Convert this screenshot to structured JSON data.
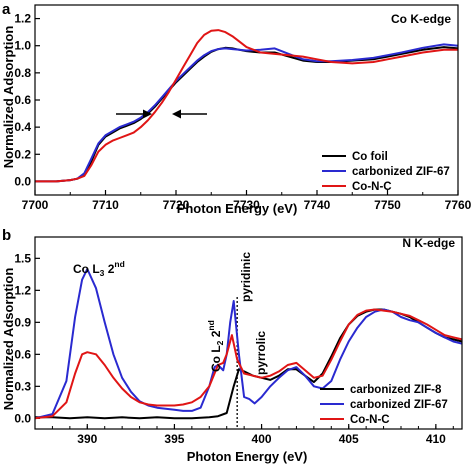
{
  "chart_data": [
    {
      "type": "line",
      "panel_label": "a",
      "panel_title": "Co K-edge",
      "xlabel": "Photon Energy (eV)",
      "ylabel": "Normalized Adsorption",
      "xlim": [
        7700,
        7760
      ],
      "ylim": [
        -0.1,
        1.3
      ],
      "xticks": [
        "7700",
        "7710",
        "7720",
        "7730",
        "7740",
        "7750",
        "7760"
      ],
      "yticks": [
        "0.0",
        "0.2",
        "0.4",
        "0.6",
        "0.8",
        "1.0",
        "1.2"
      ],
      "legend_position": "bottom-right",
      "series": [
        {
          "name": "Co foil",
          "color": "#000000",
          "x": [
            7700,
            7703,
            7705,
            7706,
            7707,
            7708,
            7709,
            7710,
            7711,
            7712,
            7713,
            7714,
            7715,
            7716,
            7717,
            7718,
            7719,
            7720,
            7721,
            7722,
            7723,
            7724,
            7725,
            7726,
            7727,
            7728,
            7729,
            7730,
            7732,
            7734,
            7736,
            7738,
            7740,
            7742,
            7745,
            7748,
            7750,
            7752,
            7755,
            7758,
            7760
          ],
          "y": [
            0.0,
            0.0,
            0.01,
            0.02,
            0.05,
            0.15,
            0.27,
            0.33,
            0.36,
            0.39,
            0.41,
            0.43,
            0.46,
            0.5,
            0.55,
            0.61,
            0.67,
            0.73,
            0.78,
            0.83,
            0.88,
            0.92,
            0.955,
            0.975,
            0.985,
            0.98,
            0.97,
            0.96,
            0.95,
            0.95,
            0.92,
            0.89,
            0.88,
            0.88,
            0.89,
            0.9,
            0.92,
            0.94,
            0.97,
            0.99,
            0.98
          ]
        },
        {
          "name": "carbonized ZIF-67",
          "color": "#2a2ad0",
          "x": [
            7700,
            7703,
            7705,
            7706,
            7707,
            7708,
            7709,
            7710,
            7711,
            7712,
            7713,
            7714,
            7715,
            7716,
            7717,
            7718,
            7719,
            7720,
            7721,
            7722,
            7723,
            7724,
            7725,
            7726,
            7727,
            7728,
            7729,
            7730,
            7732,
            7734,
            7736,
            7738,
            7740,
            7742,
            7745,
            7748,
            7750,
            7752,
            7755,
            7758,
            7760
          ],
          "y": [
            0.0,
            0.0,
            0.01,
            0.02,
            0.06,
            0.17,
            0.28,
            0.34,
            0.37,
            0.4,
            0.42,
            0.44,
            0.47,
            0.51,
            0.56,
            0.62,
            0.68,
            0.74,
            0.79,
            0.84,
            0.89,
            0.93,
            0.96,
            0.975,
            0.98,
            0.975,
            0.97,
            0.965,
            0.97,
            0.98,
            0.94,
            0.9,
            0.885,
            0.885,
            0.895,
            0.91,
            0.93,
            0.95,
            0.985,
            1.01,
            1.0
          ]
        },
        {
          "name": "Co-N-C",
          "color": "#e01515",
          "x": [
            7700,
            7703,
            7705,
            7706,
            7707,
            7708,
            7709,
            7710,
            7711,
            7712,
            7713,
            7714,
            7715,
            7716,
            7717,
            7718,
            7719,
            7720,
            7721,
            7722,
            7723,
            7724,
            7725,
            7726,
            7727,
            7728,
            7729,
            7730,
            7732,
            7734,
            7736,
            7738,
            7740,
            7742,
            7745,
            7748,
            7750,
            7752,
            7755,
            7758,
            7760
          ],
          "y": [
            0.0,
            0.0,
            0.01,
            0.02,
            0.04,
            0.12,
            0.22,
            0.27,
            0.3,
            0.32,
            0.34,
            0.36,
            0.4,
            0.45,
            0.51,
            0.58,
            0.66,
            0.75,
            0.84,
            0.93,
            1.02,
            1.08,
            1.11,
            1.115,
            1.1,
            1.07,
            1.03,
            0.99,
            0.95,
            0.94,
            0.93,
            0.92,
            0.9,
            0.88,
            0.87,
            0.88,
            0.9,
            0.92,
            0.95,
            0.97,
            0.97
          ]
        }
      ]
    },
    {
      "type": "line",
      "panel_label": "b",
      "panel_title": "N K-edge",
      "xlabel": "Photon Energy (eV)",
      "ylabel": "Normalized Adsorption",
      "xlim": [
        387,
        411.5
      ],
      "ylim": [
        -0.1,
        1.7
      ],
      "xticks": [
        "390",
        "395",
        "400",
        "405",
        "410"
      ],
      "yticks": [
        "0.0",
        "0.3",
        "0.6",
        "0.9",
        "1.2",
        "1.5"
      ],
      "legend_position": "bottom-right",
      "annotations": {
        "co_l3": {
          "base": "Co L",
          "sub": "3",
          "tail": " 2",
          "sup": "nd"
        },
        "co_l2": {
          "base": "Co L",
          "sub": "2",
          "tail": " 2",
          "sup": "nd"
        },
        "pyridinic": "pyridinic",
        "pyrrolic": "pyrrolic"
      },
      "vline_x": 398.6,
      "series": [
        {
          "name": "carbonized ZIF-8",
          "color": "#000000",
          "x": [
            387,
            388,
            389,
            390,
            391,
            392,
            393,
            394,
            395,
            396,
            397,
            397.5,
            398,
            398.4,
            398.7,
            399,
            399.5,
            400,
            400.5,
            401,
            401.5,
            402,
            402.5,
            403,
            403.5,
            404,
            404.5,
            405,
            405.5,
            406,
            406.5,
            407,
            407.5,
            408,
            408.5,
            409,
            409.5,
            410,
            410.5,
            411,
            411.5
          ],
          "y": [
            0.01,
            0.01,
            0.0,
            0.01,
            0.0,
            0.01,
            0.0,
            0.01,
            0.0,
            0.0,
            0.01,
            0.02,
            0.05,
            0.3,
            0.46,
            0.44,
            0.4,
            0.38,
            0.36,
            0.4,
            0.46,
            0.46,
            0.4,
            0.34,
            0.42,
            0.58,
            0.75,
            0.88,
            0.96,
            1.0,
            1.02,
            1.02,
            1.0,
            0.98,
            0.95,
            0.9,
            0.85,
            0.8,
            0.76,
            0.74,
            0.72
          ]
        },
        {
          "name": "carbonized ZIF-67",
          "color": "#2a2ad0",
          "x": [
            387,
            388,
            388.8,
            389.3,
            389.7,
            390,
            390.5,
            391,
            391.5,
            392,
            392.5,
            393,
            393.5,
            394,
            394.5,
            395,
            395.5,
            396,
            396.5,
            397,
            397.3,
            397.5,
            397.8,
            398,
            398.2,
            398.4,
            398.7,
            399,
            399.3,
            399.6,
            400,
            400.5,
            401,
            401.5,
            402,
            402.5,
            403,
            403.5,
            404,
            404.5,
            405,
            405.5,
            406,
            406.5,
            407,
            407.5,
            408,
            408.5,
            409,
            409.5,
            410,
            410.5,
            411,
            411.5
          ],
          "y": [
            0.0,
            0.04,
            0.35,
            0.95,
            1.3,
            1.4,
            1.22,
            0.9,
            0.6,
            0.38,
            0.25,
            0.16,
            0.12,
            0.1,
            0.09,
            0.08,
            0.07,
            0.07,
            0.1,
            0.3,
            0.48,
            0.5,
            0.45,
            0.6,
            0.9,
            1.1,
            0.6,
            0.2,
            0.18,
            0.14,
            0.2,
            0.3,
            0.38,
            0.45,
            0.48,
            0.4,
            0.3,
            0.28,
            0.35,
            0.55,
            0.72,
            0.85,
            0.95,
            1.0,
            1.02,
            1.0,
            0.95,
            0.92,
            0.9,
            0.85,
            0.8,
            0.76,
            0.72,
            0.7
          ]
        },
        {
          "name": "Co-N-C",
          "color": "#e01515",
          "x": [
            387,
            388,
            388.8,
            389.3,
            389.7,
            390,
            390.5,
            391,
            391.5,
            392,
            392.5,
            393,
            393.5,
            394,
            394.5,
            395,
            395.5,
            396,
            396.5,
            397,
            397.5,
            397.8,
            398,
            398.3,
            398.6,
            399,
            399.5,
            400,
            400.5,
            401,
            401.5,
            402,
            402.5,
            403,
            403.5,
            404,
            404.5,
            405,
            405.5,
            406,
            406.5,
            407,
            407.5,
            408,
            408.5,
            409,
            409.5,
            410,
            410.5,
            411,
            411.5
          ],
          "y": [
            0.0,
            0.02,
            0.15,
            0.42,
            0.6,
            0.62,
            0.6,
            0.5,
            0.38,
            0.28,
            0.2,
            0.15,
            0.13,
            0.12,
            0.12,
            0.12,
            0.13,
            0.15,
            0.2,
            0.3,
            0.5,
            0.52,
            0.6,
            0.78,
            0.55,
            0.42,
            0.4,
            0.38,
            0.4,
            0.44,
            0.5,
            0.52,
            0.45,
            0.38,
            0.4,
            0.55,
            0.72,
            0.88,
            0.97,
            1.01,
            1.02,
            1.01,
            1.0,
            0.98,
            0.96,
            0.92,
            0.88,
            0.83,
            0.78,
            0.76,
            0.74
          ]
        }
      ]
    }
  ]
}
